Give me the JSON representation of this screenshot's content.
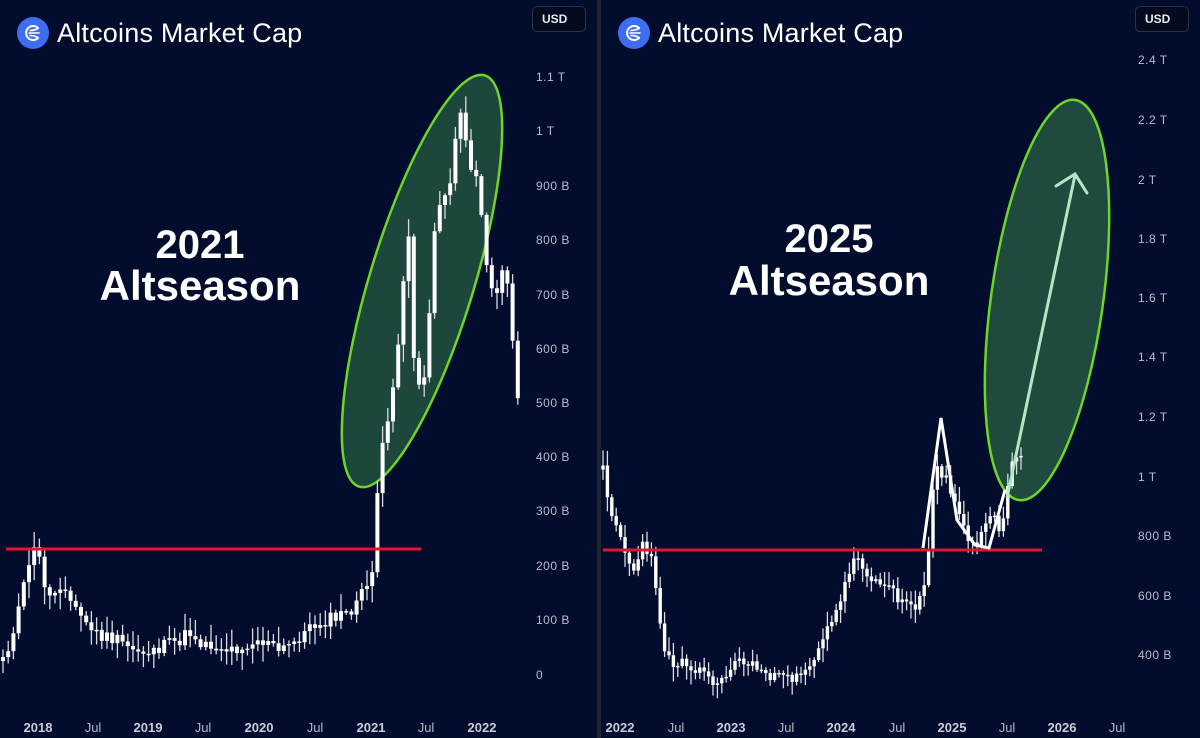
{
  "panels": [
    {
      "id": "left",
      "title": "Altcoins Market Cap",
      "currency_button": "USD",
      "annotation_line1": "2021",
      "annotation_line2": "Altseason",
      "y_ticks": [
        "1.1 T",
        "1 T",
        "900 B",
        "800 B",
        "700 B",
        "600 B",
        "500 B",
        "400 B",
        "300 B",
        "200 B",
        "100 B",
        "0"
      ],
      "x_ticks": [
        {
          "label": "2018",
          "type": "year"
        },
        {
          "label": "Jul",
          "type": "month"
        },
        {
          "label": "2019",
          "type": "year"
        },
        {
          "label": "Jul",
          "type": "month"
        },
        {
          "label": "2020",
          "type": "year"
        },
        {
          "label": "Jul",
          "type": "month"
        },
        {
          "label": "2021",
          "type": "year"
        },
        {
          "label": "Jul",
          "type": "month"
        },
        {
          "label": "2022",
          "type": "year"
        }
      ]
    },
    {
      "id": "right",
      "title": "Altcoins Market Cap",
      "currency_button": "USD",
      "annotation_line1": "2025",
      "annotation_line2": "Altseason",
      "y_ticks": [
        "2.4 T",
        "2.2 T",
        "2 T",
        "1.8 T",
        "1.6 T",
        "1.4 T",
        "1.2 T",
        "1 T",
        "800 B",
        "600 B",
        "400 B"
      ],
      "x_ticks": [
        {
          "label": "2022",
          "type": "year"
        },
        {
          "label": "Jul",
          "type": "month"
        },
        {
          "label": "2023",
          "type": "year"
        },
        {
          "label": "Jul",
          "type": "month"
        },
        {
          "label": "2024",
          "type": "year"
        },
        {
          "label": "Jul",
          "type": "month"
        },
        {
          "label": "2025",
          "type": "year"
        },
        {
          "label": "Jul",
          "type": "month"
        },
        {
          "label": "2026",
          "type": "year"
        },
        {
          "label": "Jul",
          "type": "month"
        }
      ]
    }
  ],
  "colors": {
    "background": "#020d2e",
    "candle": "#ffffff",
    "resistance_line": "#e8122a",
    "highlight_fill": "#22513f",
    "highlight_stroke": "#6cd62a",
    "arrow": "#b5e6c4",
    "logo": "#3d6ef2"
  },
  "chart_data": [
    {
      "type": "candlestick",
      "title": "Altcoins Market Cap",
      "subtitle": "2021 Altseason",
      "xlabel": "",
      "ylabel": "USD",
      "ylim": [
        0,
        1150000000000
      ],
      "y_tick_labels": [
        "0",
        "100 B",
        "200 B",
        "300 B",
        "400 B",
        "500 B",
        "600 B",
        "700 B",
        "800 B",
        "900 B",
        "1 T",
        "1.1 T"
      ],
      "x_tick_labels": [
        "2018",
        "Jul",
        "2019",
        "Jul",
        "2020",
        "Jul",
        "2021",
        "Jul",
        "2022"
      ],
      "grid": false,
      "resistance_level_B": 235,
      "highlight": "green ellipse around Jan 2021 - Nov 2021 rally",
      "approx_weekly_close_B": {
        "2018-01": 220,
        "2018-04": 130,
        "2018-07": 90,
        "2019-01": 40,
        "2019-07": 70,
        "2020-01": 50,
        "2020-07": 75,
        "2021-01": 350,
        "2021-05": 850,
        "2021-07": 470,
        "2021-09": 880,
        "2021-11": 1050,
        "2022-01": 700,
        "2022-03": 600,
        "2022-05": 400
      }
    },
    {
      "type": "candlestick",
      "title": "Altcoins Market Cap",
      "subtitle": "2025 Altseason",
      "xlabel": "",
      "ylabel": "USD",
      "ylim": [
        300000000000,
        2450000000000
      ],
      "y_tick_labels": [
        "400 B",
        "600 B",
        "800 B",
        "1 T",
        "1.2 T",
        "1.4 T",
        "1.6 T",
        "1.8 T",
        "2 T",
        "2.2 T",
        "2.4 T"
      ],
      "x_tick_labels": [
        "2022",
        "Jul",
        "2023",
        "Jul",
        "2024",
        "Jul",
        "2025",
        "Jul",
        "2026",
        "Jul"
      ],
      "grid": false,
      "resistance_level_B": 795,
      "highlight": "green ellipse with projected arrow from ~1.0 T toward ~2.05 T",
      "approx_weekly_close_B": {
        "2022-01": 1000,
        "2022-04": 830,
        "2022-06": 470,
        "2022-11": 350,
        "2023-03": 420,
        "2023-07": 410,
        "2023-10": 380,
        "2024-01": 520,
        "2024-03": 760,
        "2024-08": 620,
        "2024-12": 1050,
        "2025-02": 900,
        "2025-04": 760,
        "2025-06": 850,
        "2025-08": 1120
      }
    }
  ]
}
